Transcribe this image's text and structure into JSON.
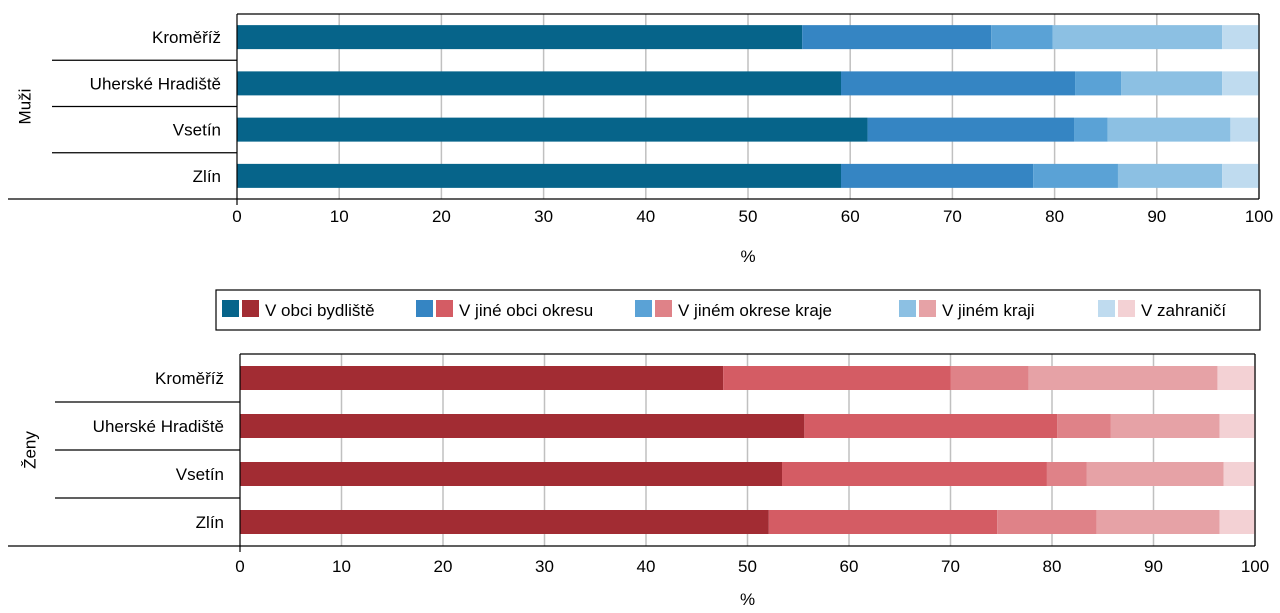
{
  "chart_data": [
    {
      "type": "bar",
      "orientation": "horizontal",
      "stacked": true,
      "group_label": "Muži",
      "categories": [
        "Kroměříž",
        "Uherské Hradiště",
        "Vsetín",
        "Zlín"
      ],
      "series": [
        {
          "name": "V obci bydliště",
          "color": "#06648a",
          "values": [
            55.3,
            59.1,
            61.7,
            59.1
          ]
        },
        {
          "name": "V jiné obci okresu",
          "color": "#3585c3",
          "values": [
            18.5,
            22.9,
            20.2,
            18.8
          ]
        },
        {
          "name": "V jiném okrese kraje",
          "color": "#5aa2d6",
          "values": [
            6.0,
            4.5,
            3.3,
            8.3
          ]
        },
        {
          "name": "V jiném kraji",
          "color": "#8cc0e3",
          "values": [
            16.6,
            9.9,
            12.0,
            10.2
          ]
        },
        {
          "name": "V zahraničí",
          "color": "#bfdbef",
          "values": [
            3.6,
            3.6,
            2.8,
            3.6
          ]
        }
      ],
      "xlabel": "%",
      "xlim": [
        0,
        100
      ],
      "xticks": [
        0,
        10,
        20,
        30,
        40,
        50,
        60,
        70,
        80,
        90,
        100
      ],
      "grid": true
    },
    {
      "type": "bar",
      "orientation": "horizontal",
      "stacked": true,
      "group_label": "Ženy",
      "categories": [
        "Kroměříž",
        "Uherské Hradiště",
        "Vsetín",
        "Zlín"
      ],
      "series": [
        {
          "name": "V obci bydliště",
          "color": "#a22c33",
          "values": [
            47.6,
            55.6,
            53.4,
            52.1
          ]
        },
        {
          "name": "V jiné obci okresu",
          "color": "#d45c64",
          "values": [
            22.4,
            24.9,
            26.1,
            22.5
          ]
        },
        {
          "name": "V jiném okrese kraje",
          "color": "#df8288",
          "values": [
            7.7,
            5.3,
            3.9,
            9.8
          ]
        },
        {
          "name": "V jiném kraji",
          "color": "#e6a2a6",
          "values": [
            18.6,
            10.7,
            13.5,
            12.1
          ]
        },
        {
          "name": "V zahraničí",
          "color": "#f3d1d4",
          "values": [
            3.7,
            3.5,
            3.1,
            3.5
          ]
        }
      ],
      "xlabel": "%",
      "xlim": [
        0,
        100
      ],
      "xticks": [
        0,
        10,
        20,
        30,
        40,
        50,
        60,
        70,
        80,
        90,
        100
      ],
      "grid": true
    }
  ],
  "legend": {
    "placement": "between-charts",
    "items": [
      {
        "label": "V obci bydliště",
        "colors": [
          "#06648a",
          "#a22c33"
        ]
      },
      {
        "label": "V jiné obci okresu",
        "colors": [
          "#3585c3",
          "#d45c64"
        ]
      },
      {
        "label": "V jiném okrese kraje",
        "colors": [
          "#5aa2d6",
          "#df8288"
        ]
      },
      {
        "label": "V jiném kraji",
        "colors": [
          "#8cc0e3",
          "#e6a2a6"
        ]
      },
      {
        "label": "V zahraničí",
        "colors": [
          "#bfdbef",
          "#f3d1d4"
        ]
      }
    ]
  }
}
